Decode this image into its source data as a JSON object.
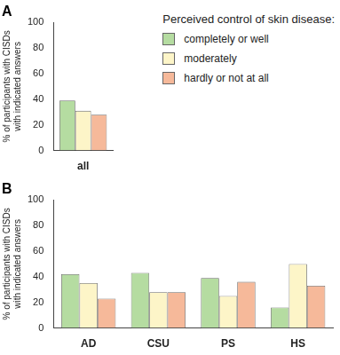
{
  "chart_data": [
    {
      "type": "bar",
      "title": "A",
      "legend_title": "Perceived control of skin disease:",
      "y_label": [
        "% of participants with CISDs",
        "with indicated answers"
      ],
      "categories": [
        "all"
      ],
      "series": [
        {
          "name": "completely or well",
          "color": "#b5dca1",
          "values": [
            39
          ]
        },
        {
          "name": "moderately",
          "color": "#fdf5c8",
          "values": [
            31
          ]
        },
        {
          "name": "hardly or not at all",
          "color": "#f6b99a",
          "values": [
            28
          ]
        }
      ],
      "ylim": [
        0,
        100
      ],
      "yticks": [
        0,
        20,
        40,
        60,
        80,
        100
      ],
      "grid": false,
      "legend": "upper right"
    },
    {
      "type": "bar",
      "title": "B",
      "y_label": [
        "% of participants with CISDs",
        "with indicated answers"
      ],
      "categories": [
        "AD",
        "CSU",
        "PS",
        "HS"
      ],
      "series": [
        {
          "name": "completely or well",
          "color": "#b5dca1",
          "values": [
            42,
            43,
            39,
            16
          ]
        },
        {
          "name": "moderately",
          "color": "#fdf5c8",
          "values": [
            35,
            28,
            25,
            50
          ]
        },
        {
          "name": "hardly or not at all",
          "color": "#f6b99a",
          "values": [
            23,
            28,
            36,
            33
          ]
        }
      ],
      "ylim": [
        0,
        100
      ],
      "yticks": [
        0,
        20,
        40,
        60,
        80,
        100
      ],
      "grid": false
    }
  ]
}
